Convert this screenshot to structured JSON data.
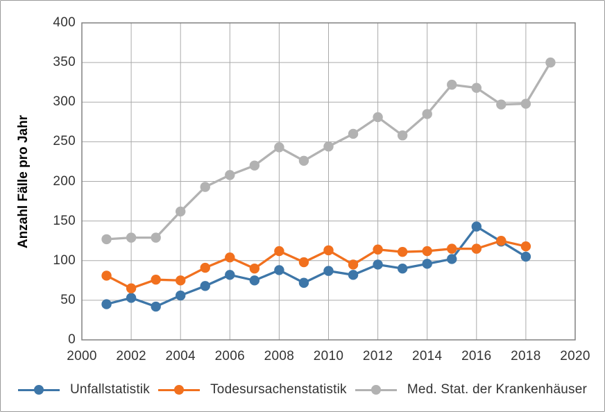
{
  "figure": {
    "background": "#ffffff",
    "border_color": "#999999",
    "grid_color": "#aaaaaa",
    "axis_color": "#808080",
    "text_color": "#333333"
  },
  "chart_data": {
    "type": "line",
    "title": "",
    "xlabel": "",
    "ylabel": "Anzahl Fälle pro Jahr",
    "xlim": [
      2000,
      2020
    ],
    "ylim": [
      0,
      400
    ],
    "x_ticks": [
      2000,
      2002,
      2004,
      2006,
      2008,
      2010,
      2012,
      2014,
      2016,
      2018,
      2020
    ],
    "y_ticks": [
      0,
      50,
      100,
      150,
      200,
      250,
      300,
      350,
      400
    ],
    "grid": true,
    "legend_position": "bottom",
    "series": [
      {
        "name": "Unfallstatistik",
        "color": "#3d76a8",
        "x": [
          2001,
          2002,
          2003,
          2004,
          2005,
          2006,
          2007,
          2008,
          2009,
          2010,
          2011,
          2012,
          2013,
          2014,
          2015,
          2016,
          2017,
          2018
        ],
        "values": [
          45,
          53,
          42,
          56,
          68,
          82,
          75,
          88,
          72,
          87,
          82,
          95,
          90,
          96,
          102,
          143,
          124,
          105
        ]
      },
      {
        "name": "Todesursachenstatistik",
        "color": "#f1701e",
        "x": [
          2001,
          2002,
          2003,
          2004,
          2005,
          2006,
          2007,
          2008,
          2009,
          2010,
          2011,
          2012,
          2013,
          2014,
          2015,
          2016,
          2017,
          2018
        ],
        "values": [
          81,
          65,
          76,
          75,
          91,
          104,
          90,
          112,
          98,
          113,
          95,
          114,
          111,
          112,
          115,
          115,
          125,
          118
        ]
      },
      {
        "name": "Med. Stat. der Krankenhäuser",
        "color": "#b2b2b2",
        "x": [
          2001,
          2002,
          2003,
          2004,
          2005,
          2006,
          2007,
          2008,
          2009,
          2010,
          2011,
          2012,
          2013,
          2014,
          2015,
          2016,
          2017,
          2018,
          2019
        ],
        "values": [
          127,
          129,
          129,
          162,
          193,
          208,
          220,
          243,
          226,
          244,
          260,
          281,
          258,
          285,
          322,
          318,
          297,
          298,
          350
        ]
      }
    ]
  }
}
